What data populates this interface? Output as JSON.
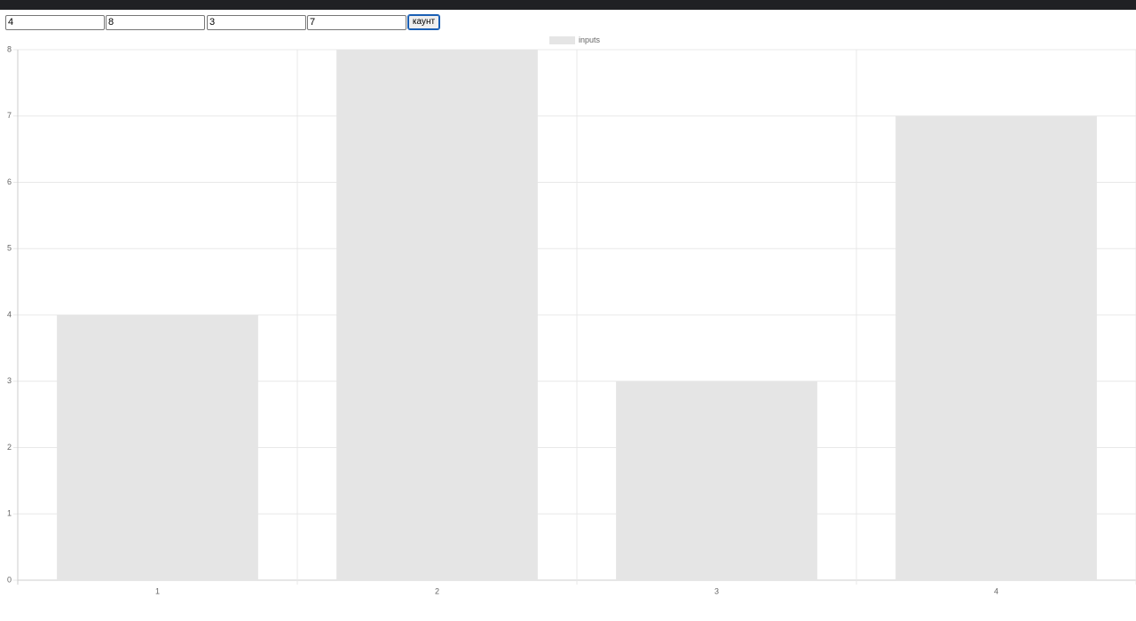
{
  "inputs": [
    "4",
    "8",
    "3",
    "7"
  ],
  "button": "каунт",
  "chart_data": {
    "type": "bar",
    "categories": [
      "1",
      "2",
      "3",
      "4"
    ],
    "series": [
      {
        "name": "inputs",
        "color": "#e5e5e5",
        "values": [
          4,
          8,
          3,
          7
        ]
      }
    ],
    "ylim": [
      0,
      8
    ],
    "yticks": [
      0,
      1,
      2,
      3,
      4,
      5,
      6,
      7,
      8
    ],
    "grid": true,
    "legend": "top"
  }
}
